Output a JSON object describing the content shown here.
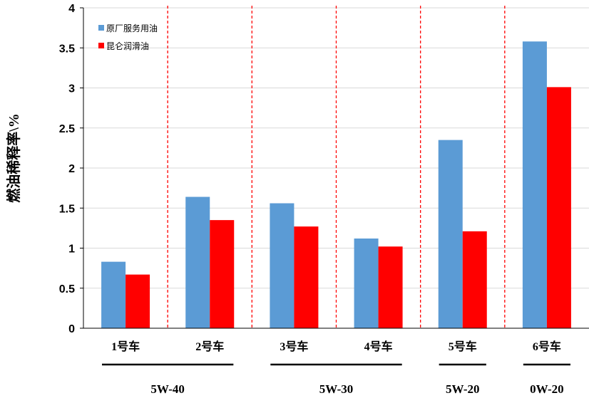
{
  "chart_data": {
    "type": "bar",
    "ylabel": "燃油稀释率\\%",
    "ylim": [
      0,
      4
    ],
    "yticks": [
      0,
      0.5,
      1,
      1.5,
      2,
      2.5,
      3,
      3.5,
      4
    ],
    "ytick_labels": [
      "0",
      "0.5",
      "1",
      "1.5",
      "2",
      "2.5",
      "3",
      "3.5",
      "4"
    ],
    "grid": true,
    "legend_position": "top-left",
    "categories": [
      "1号车",
      "2号车",
      "3号车",
      "4号车",
      "5号车",
      "6号车"
    ],
    "series": [
      {
        "name": "原厂服务用油",
        "color": "#5b9bd5",
        "values": [
          0.83,
          1.64,
          1.56,
          1.12,
          2.35,
          3.58
        ]
      },
      {
        "name": "昆仑润滑油",
        "color": "#ff0000",
        "values": [
          0.67,
          1.35,
          1.27,
          1.02,
          1.21,
          3.01
        ]
      }
    ],
    "groups": [
      {
        "label": "5W-40",
        "categories": [
          "1号车",
          "2号车"
        ]
      },
      {
        "label": "5W-30",
        "categories": [
          "3号车",
          "4号车"
        ]
      },
      {
        "label": "5W-20",
        "categories": [
          "5号车"
        ]
      },
      {
        "label": "0W-20",
        "categories": [
          "6号车"
        ]
      }
    ],
    "separator_color": "#ff0000"
  }
}
